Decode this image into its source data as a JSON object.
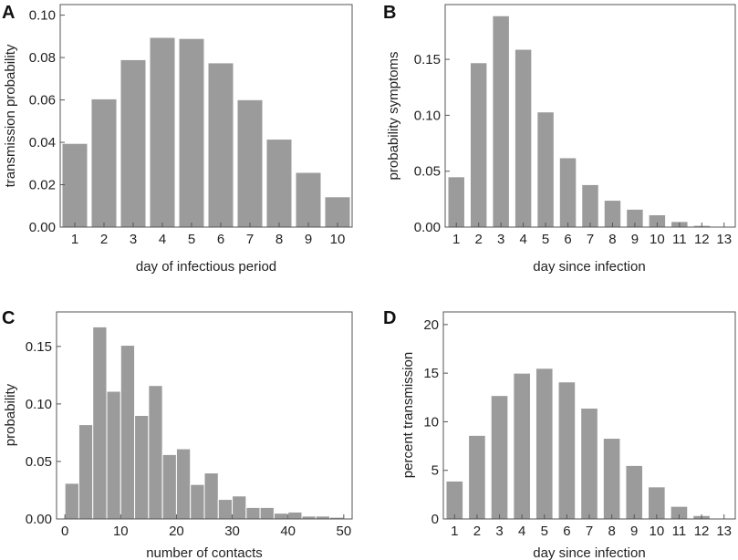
{
  "chart_data": [
    {
      "panel": "A",
      "type": "bar",
      "categories": [
        "1",
        "2",
        "3",
        "4",
        "5",
        "6",
        "7",
        "8",
        "9",
        "10"
      ],
      "values": [
        0.0395,
        0.0605,
        0.079,
        0.0895,
        0.089,
        0.0775,
        0.0601,
        0.0415,
        0.0258,
        0.0143
      ],
      "xlabel": "day of infectious period",
      "ylabel": "transmission probability",
      "ylim": [
        0,
        0.105
      ],
      "yticks": [
        "0.00",
        "0.02",
        "0.04",
        "0.06",
        "0.08",
        "0.10"
      ],
      "ytick_values": [
        0,
        0.02,
        0.04,
        0.06,
        0.08,
        0.1
      ]
    },
    {
      "panel": "B",
      "type": "bar",
      "categories": [
        "1",
        "2",
        "3",
        "4",
        "5",
        "6",
        "7",
        "8",
        "9",
        "10",
        "11",
        "12",
        "13"
      ],
      "values": [
        0.045,
        0.147,
        0.189,
        0.159,
        0.103,
        0.062,
        0.038,
        0.024,
        0.016,
        0.011,
        0.005,
        0.0015,
        0.0002
      ],
      "xlabel": "day since infection",
      "ylabel": "probability symptoms",
      "ylim": [
        0,
        0.199
      ],
      "yticks": [
        "0.00",
        "0.05",
        "0.10",
        "0.15"
      ],
      "ytick_values": [
        0,
        0.05,
        0.1,
        0.15
      ]
    },
    {
      "panel": "C",
      "type": "histogram",
      "bin_edges": [
        0,
        2.5,
        5,
        7.5,
        10,
        12.5,
        15,
        17.5,
        20,
        22.5,
        25,
        27.5,
        30,
        32.5,
        35,
        37.5,
        40,
        42.5,
        45,
        47.5,
        50
      ],
      "values": [
        0.031,
        0.082,
        0.167,
        0.111,
        0.151,
        0.09,
        0.116,
        0.056,
        0.061,
        0.03,
        0.04,
        0.017,
        0.02,
        0.01,
        0.01,
        0.005,
        0.006,
        0.0025,
        0.0025,
        0.0015
      ],
      "xlabel": "number of contacts",
      "ylabel": "probability",
      "xlim": [
        -1.5,
        51.5
      ],
      "ylim": [
        0,
        0.18
      ],
      "xticks": [
        "0",
        "10",
        "20",
        "30",
        "40",
        "50"
      ],
      "xtick_values": [
        0,
        10,
        20,
        30,
        40,
        50
      ],
      "yticks": [
        "0.00",
        "0.05",
        "0.10",
        "0.15"
      ],
      "ytick_values": [
        0,
        0.05,
        0.1,
        0.15
      ]
    },
    {
      "panel": "D",
      "type": "bar",
      "categories": [
        "1",
        "2",
        "3",
        "4",
        "5",
        "6",
        "7",
        "8",
        "9",
        "10",
        "11",
        "12",
        "13"
      ],
      "values": [
        3.9,
        8.6,
        12.7,
        15.0,
        15.5,
        14.1,
        11.4,
        8.3,
        5.5,
        3.3,
        1.3,
        0.35,
        0.05
      ],
      "xlabel": "day since infection",
      "ylabel": "percent transmission",
      "ylim": [
        0,
        21.3
      ],
      "yticks": [
        "0",
        "5",
        "10",
        "15",
        "20"
      ],
      "ytick_values": [
        0,
        5,
        10,
        15,
        20
      ]
    }
  ]
}
